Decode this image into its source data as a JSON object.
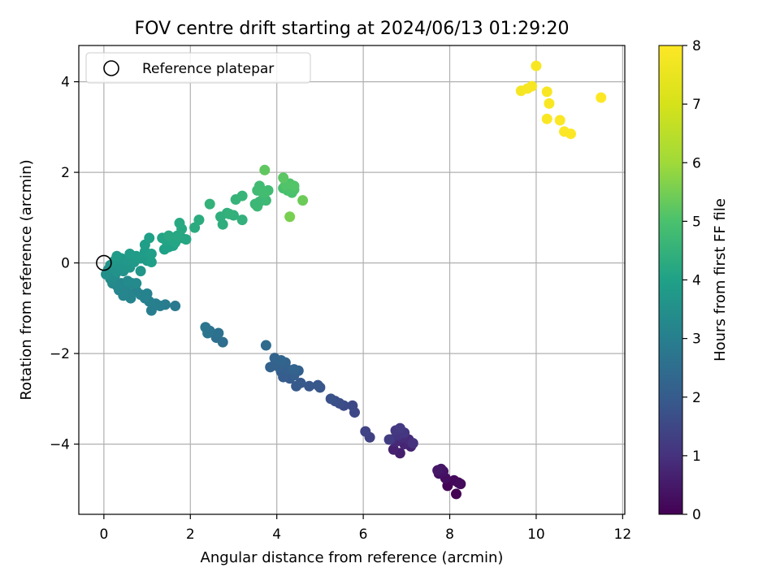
{
  "chart_data": {
    "type": "scatter",
    "title": "FOV centre drift starting at 2024/06/13 01:29:20",
    "xlabel": "Angular distance from reference (arcmin)",
    "ylabel": "Rotation from reference (arcmin)",
    "xlim": [
      -0.58,
      12.05
    ],
    "ylim": [
      -5.55,
      4.8
    ],
    "xticks": [
      0,
      2,
      4,
      6,
      8,
      10,
      12
    ],
    "yticks": [
      -4,
      -2,
      0,
      2,
      4
    ],
    "grid": true,
    "legend": {
      "placement": "top-left",
      "label": "Reference platepar",
      "marker": "open-circle"
    },
    "reference_point": {
      "x": 0,
      "y": 0
    },
    "colorbar": {
      "label": "Hours from first FF file",
      "min": 0,
      "max": 8,
      "ticks": [
        0,
        1,
        2,
        3,
        4,
        5,
        6,
        7,
        8
      ],
      "colormap": "viridis"
    },
    "points": [
      {
        "x": 8.15,
        "y": -5.1,
        "c": 0.0
      },
      {
        "x": 7.95,
        "y": -4.92,
        "c": 0.05
      },
      {
        "x": 8.2,
        "y": -4.85,
        "c": 0.1
      },
      {
        "x": 8.1,
        "y": -4.8,
        "c": 0.15
      },
      {
        "x": 8.25,
        "y": -4.88,
        "c": 0.2
      },
      {
        "x": 7.9,
        "y": -4.75,
        "c": 0.25
      },
      {
        "x": 7.75,
        "y": -4.65,
        "c": 0.3
      },
      {
        "x": 7.85,
        "y": -4.6,
        "c": 0.35
      },
      {
        "x": 7.8,
        "y": -4.55,
        "c": 0.4
      },
      {
        "x": 7.72,
        "y": -4.58,
        "c": 0.45
      },
      {
        "x": 6.85,
        "y": -4.2,
        "c": 0.6
      },
      {
        "x": 6.7,
        "y": -4.12,
        "c": 0.65
      },
      {
        "x": 7.1,
        "y": -4.05,
        "c": 0.7
      },
      {
        "x": 6.95,
        "y": -4.0,
        "c": 0.75
      },
      {
        "x": 6.75,
        "y": -3.95,
        "c": 0.8
      },
      {
        "x": 7.05,
        "y": -3.9,
        "c": 0.85
      },
      {
        "x": 6.9,
        "y": -3.85,
        "c": 0.9
      },
      {
        "x": 6.65,
        "y": -3.9,
        "c": 0.95
      },
      {
        "x": 7.15,
        "y": -3.98,
        "c": 1.0
      },
      {
        "x": 6.8,
        "y": -3.8,
        "c": 1.05
      },
      {
        "x": 6.95,
        "y": -3.75,
        "c": 1.1
      },
      {
        "x": 6.75,
        "y": -3.7,
        "c": 1.15
      },
      {
        "x": 6.85,
        "y": -3.65,
        "c": 1.2
      },
      {
        "x": 6.6,
        "y": -3.9,
        "c": 1.25
      },
      {
        "x": 6.15,
        "y": -3.85,
        "c": 1.35
      },
      {
        "x": 6.05,
        "y": -3.72,
        "c": 1.4
      },
      {
        "x": 5.8,
        "y": -3.3,
        "c": 1.5
      },
      {
        "x": 5.75,
        "y": -3.15,
        "c": 1.55
      },
      {
        "x": 5.55,
        "y": -3.15,
        "c": 1.6
      },
      {
        "x": 5.45,
        "y": -3.1,
        "c": 1.65
      },
      {
        "x": 5.35,
        "y": -3.05,
        "c": 1.7
      },
      {
        "x": 5.25,
        "y": -3.0,
        "c": 1.75
      },
      {
        "x": 5.0,
        "y": -2.75,
        "c": 1.85
      },
      {
        "x": 4.95,
        "y": -2.7,
        "c": 1.88
      },
      {
        "x": 4.75,
        "y": -2.72,
        "c": 1.9
      },
      {
        "x": 4.55,
        "y": -2.65,
        "c": 1.93
      },
      {
        "x": 4.45,
        "y": -2.72,
        "c": 1.96
      },
      {
        "x": 4.3,
        "y": -2.55,
        "c": 1.99
      },
      {
        "x": 4.15,
        "y": -2.52,
        "c": 2.02
      },
      {
        "x": 4.1,
        "y": -2.4,
        "c": 2.05
      },
      {
        "x": 4.4,
        "y": -2.48,
        "c": 2.08
      },
      {
        "x": 4.25,
        "y": -2.35,
        "c": 2.1
      },
      {
        "x": 4.5,
        "y": -2.38,
        "c": 2.12
      },
      {
        "x": 4.05,
        "y": -2.3,
        "c": 2.14
      },
      {
        "x": 3.95,
        "y": -2.25,
        "c": 2.16
      },
      {
        "x": 3.85,
        "y": -2.3,
        "c": 2.18
      },
      {
        "x": 4.2,
        "y": -2.2,
        "c": 2.2
      },
      {
        "x": 3.95,
        "y": -2.1,
        "c": 2.22
      },
      {
        "x": 4.4,
        "y": -2.35,
        "c": 2.24
      },
      {
        "x": 4.1,
        "y": -2.15,
        "c": 2.26
      },
      {
        "x": 3.75,
        "y": -1.82,
        "c": 2.4
      },
      {
        "x": 2.75,
        "y": -1.75,
        "c": 2.5
      },
      {
        "x": 2.6,
        "y": -1.65,
        "c": 2.55
      },
      {
        "x": 2.65,
        "y": -1.55,
        "c": 2.6
      },
      {
        "x": 2.45,
        "y": -1.5,
        "c": 2.65
      },
      {
        "x": 2.35,
        "y": -1.42,
        "c": 2.7
      },
      {
        "x": 2.4,
        "y": -1.55,
        "c": 2.75
      },
      {
        "x": 1.65,
        "y": -0.95,
        "c": 2.85
      },
      {
        "x": 1.42,
        "y": -0.92,
        "c": 2.9
      },
      {
        "x": 1.3,
        "y": -0.95,
        "c": 2.93
      },
      {
        "x": 1.1,
        "y": -1.05,
        "c": 2.96
      },
      {
        "x": 1.2,
        "y": -0.9,
        "c": 2.99
      },
      {
        "x": 1.05,
        "y": -0.85,
        "c": 3.02
      },
      {
        "x": 0.95,
        "y": -0.78,
        "c": 3.05
      },
      {
        "x": 0.85,
        "y": -0.7,
        "c": 3.08
      },
      {
        "x": 1.0,
        "y": -0.68,
        "c": 3.1
      },
      {
        "x": 0.75,
        "y": -0.62,
        "c": 3.12
      },
      {
        "x": 0.62,
        "y": -0.78,
        "c": 3.14
      },
      {
        "x": 0.55,
        "y": -0.65,
        "c": 3.16
      },
      {
        "x": 0.45,
        "y": -0.72,
        "c": 3.18
      },
      {
        "x": 0.35,
        "y": -0.6,
        "c": 3.2
      },
      {
        "x": 0.4,
        "y": -0.45,
        "c": 3.22
      },
      {
        "x": 0.5,
        "y": -0.5,
        "c": 3.24
      },
      {
        "x": 0.3,
        "y": -0.5,
        "c": 3.26
      },
      {
        "x": 0.2,
        "y": -0.45,
        "c": 3.28
      },
      {
        "x": 0.65,
        "y": -0.45,
        "c": 3.3
      },
      {
        "x": 0.75,
        "y": -0.45,
        "c": 3.32
      },
      {
        "x": 0.55,
        "y": -0.4,
        "c": 3.34
      },
      {
        "x": 0.15,
        "y": -0.35,
        "c": 3.36
      },
      {
        "x": 0.25,
        "y": -0.3,
        "c": 3.38
      },
      {
        "x": 0.05,
        "y": -0.25,
        "c": 3.5
      },
      {
        "x": 0.1,
        "y": -0.15,
        "c": 3.52
      },
      {
        "x": 0.2,
        "y": -0.12,
        "c": 3.54
      },
      {
        "x": 0.3,
        "y": -0.2,
        "c": 3.56
      },
      {
        "x": 0.45,
        "y": -0.18,
        "c": 3.58
      },
      {
        "x": 0.15,
        "y": -0.05,
        "c": 3.6
      },
      {
        "x": 0.35,
        "y": -0.05,
        "c": 3.62
      },
      {
        "x": 0.5,
        "y": -0.08,
        "c": 3.64
      },
      {
        "x": 0.6,
        "y": -0.1,
        "c": 3.66
      },
      {
        "x": 0.85,
        "y": -0.18,
        "c": 3.68
      },
      {
        "x": 0.25,
        "y": 0.05,
        "c": 3.7
      },
      {
        "x": 0.4,
        "y": 0.1,
        "c": 3.72
      },
      {
        "x": 0.55,
        "y": 0.05,
        "c": 3.74
      },
      {
        "x": 0.7,
        "y": 0.02,
        "c": 3.76
      },
      {
        "x": 0.85,
        "y": 0.1,
        "c": 3.78
      },
      {
        "x": 1.0,
        "y": 0.05,
        "c": 3.8
      },
      {
        "x": 0.3,
        "y": 0.15,
        "c": 3.82
      },
      {
        "x": 0.6,
        "y": 0.2,
        "c": 3.84
      },
      {
        "x": 0.75,
        "y": 0.15,
        "c": 3.86
      },
      {
        "x": 0.95,
        "y": 0.25,
        "c": 3.88
      },
      {
        "x": 1.1,
        "y": 0.2,
        "c": 3.9
      },
      {
        "x": 0.95,
        "y": 0.4,
        "c": 3.92
      },
      {
        "x": 1.1,
        "y": 0.02,
        "c": 3.94
      },
      {
        "x": 1.05,
        "y": 0.55,
        "c": 3.96
      },
      {
        "x": 1.4,
        "y": 0.3,
        "c": 4.0
      },
      {
        "x": 1.5,
        "y": 0.35,
        "c": 4.02
      },
      {
        "x": 1.6,
        "y": 0.38,
        "c": 4.04
      },
      {
        "x": 1.45,
        "y": 0.48,
        "c": 4.06
      },
      {
        "x": 1.35,
        "y": 0.55,
        "c": 4.08
      },
      {
        "x": 1.55,
        "y": 0.5,
        "c": 4.1
      },
      {
        "x": 1.65,
        "y": 0.45,
        "c": 4.12
      },
      {
        "x": 1.8,
        "y": 0.55,
        "c": 4.14
      },
      {
        "x": 1.9,
        "y": 0.52,
        "c": 4.16
      },
      {
        "x": 1.7,
        "y": 0.6,
        "c": 4.18
      },
      {
        "x": 1.5,
        "y": 0.6,
        "c": 4.2
      },
      {
        "x": 1.8,
        "y": 0.75,
        "c": 4.22
      },
      {
        "x": 1.75,
        "y": 0.88,
        "c": 4.24
      },
      {
        "x": 2.1,
        "y": 0.78,
        "c": 4.28
      },
      {
        "x": 2.2,
        "y": 0.95,
        "c": 4.3
      },
      {
        "x": 2.75,
        "y": 0.85,
        "c": 4.38
      },
      {
        "x": 2.7,
        "y": 1.02,
        "c": 4.4
      },
      {
        "x": 2.85,
        "y": 1.1,
        "c": 4.42
      },
      {
        "x": 3.0,
        "y": 1.05,
        "c": 4.44
      },
      {
        "x": 3.2,
        "y": 0.95,
        "c": 4.46
      },
      {
        "x": 2.9,
        "y": 1.08,
        "c": 4.48
      },
      {
        "x": 3.05,
        "y": 1.4,
        "c": 4.55
      },
      {
        "x": 3.2,
        "y": 1.48,
        "c": 4.58
      },
      {
        "x": 2.45,
        "y": 1.3,
        "c": 4.5
      },
      {
        "x": 3.5,
        "y": 1.3,
        "c": 4.65
      },
      {
        "x": 3.6,
        "y": 1.35,
        "c": 4.68
      },
      {
        "x": 3.55,
        "y": 1.25,
        "c": 4.7
      },
      {
        "x": 3.75,
        "y": 1.38,
        "c": 4.72
      },
      {
        "x": 3.7,
        "y": 1.5,
        "c": 4.74
      },
      {
        "x": 3.65,
        "y": 1.6,
        "c": 4.76
      },
      {
        "x": 3.55,
        "y": 1.6,
        "c": 4.78
      },
      {
        "x": 3.8,
        "y": 1.6,
        "c": 4.8
      },
      {
        "x": 3.6,
        "y": 1.7,
        "c": 4.82
      },
      {
        "x": 3.7,
        "y": 1.55,
        "c": 4.84
      },
      {
        "x": 4.15,
        "y": 1.65,
        "c": 4.95
      },
      {
        "x": 4.25,
        "y": 1.6,
        "c": 4.98
      },
      {
        "x": 4.35,
        "y": 1.55,
        "c": 5.0
      },
      {
        "x": 4.4,
        "y": 1.62,
        "c": 5.02
      },
      {
        "x": 4.3,
        "y": 1.75,
        "c": 5.05
      },
      {
        "x": 4.2,
        "y": 1.72,
        "c": 5.08
      },
      {
        "x": 4.4,
        "y": 1.7,
        "c": 5.1
      },
      {
        "x": 4.15,
        "y": 1.88,
        "c": 5.2
      },
      {
        "x": 3.72,
        "y": 2.05,
        "c": 5.25
      },
      {
        "x": 4.6,
        "y": 1.38,
        "c": 5.4
      },
      {
        "x": 4.3,
        "y": 1.02,
        "c": 5.55
      },
      {
        "x": 9.65,
        "y": 3.8,
        "c": 7.8
      },
      {
        "x": 9.8,
        "y": 3.85,
        "c": 7.82
      },
      {
        "x": 9.9,
        "y": 3.9,
        "c": 7.84
      },
      {
        "x": 10.0,
        "y": 4.35,
        "c": 7.86
      },
      {
        "x": 10.25,
        "y": 3.78,
        "c": 7.88
      },
      {
        "x": 10.3,
        "y": 3.52,
        "c": 7.9
      },
      {
        "x": 10.25,
        "y": 3.18,
        "c": 7.92
      },
      {
        "x": 10.55,
        "y": 3.15,
        "c": 7.94
      },
      {
        "x": 10.65,
        "y": 2.9,
        "c": 7.96
      },
      {
        "x": 10.8,
        "y": 2.85,
        "c": 7.98
      },
      {
        "x": 11.5,
        "y": 3.65,
        "c": 8.0
      }
    ]
  }
}
